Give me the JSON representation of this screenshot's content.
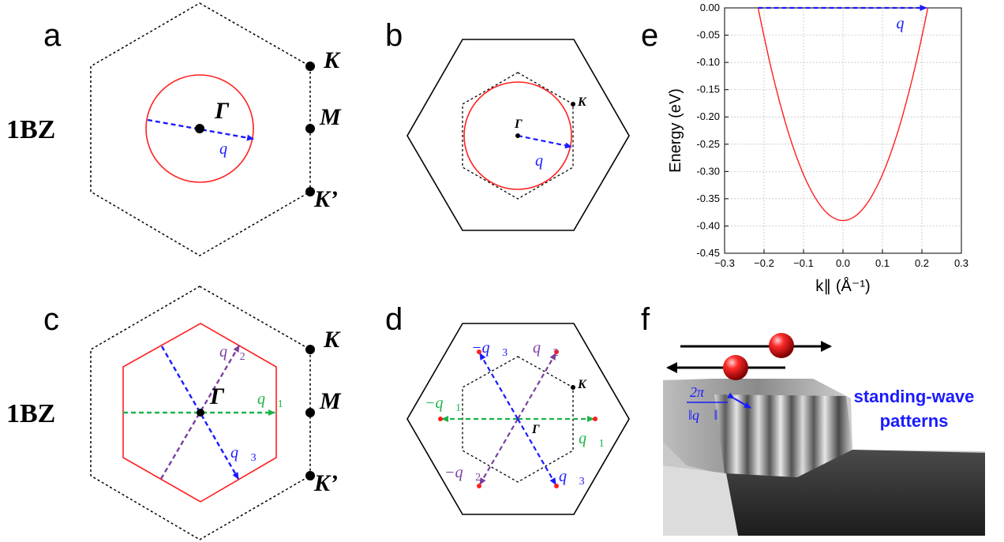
{
  "panel_labels": {
    "a": "a",
    "b": "b",
    "c": "c",
    "d": "d",
    "e": "e",
    "f": "f"
  },
  "bz_label": "1BZ",
  "points": {
    "gamma": "Γ",
    "k": "K",
    "m": "M",
    "kprime": "K’"
  },
  "vectors": {
    "q": "q⃗",
    "q1": "q⃗",
    "q1_sub": "1",
    "q2": "q⃗",
    "q2_sub": "2",
    "q3": "q⃗",
    "q3_sub": "3",
    "neg_q1": "−q⃗",
    "neg_q2": "−q⃗",
    "neg_q3": "−q⃗"
  },
  "colors": {
    "fermi_contour": "#ff2020",
    "q_blue": "#1a1aff",
    "q_green": "#1db34a",
    "q_purple": "#7b3fa0"
  },
  "panel_f": {
    "text_line1": "standing-wave",
    "text_line2": "patterns",
    "frac_num": "2π",
    "frac_den": "‖q⃗ ‖"
  },
  "chart_data": {
    "type": "line",
    "title": "",
    "xlabel": "k∥ (Å⁻¹)",
    "ylabel": "Energy (eV)",
    "xlim": [
      -0.3,
      0.3
    ],
    "ylim": [
      -0.45,
      0.0
    ],
    "xticks": [
      "−0.3",
      "−0.2",
      "−0.1",
      "0.0",
      "0.1",
      "0.2",
      "0.3"
    ],
    "yticks": [
      "0.00",
      "-0.05",
      "-0.10",
      "-0.15",
      "-0.20",
      "-0.25",
      "-0.30",
      "-0.35",
      "-0.40",
      "-0.45"
    ],
    "grid": true,
    "series": [
      {
        "curve": "parabola",
        "vertex_energy": -0.39,
        "kF": 0.215,
        "color": "#ff2020"
      }
    ],
    "arrow": {
      "from_k": -0.215,
      "to_k": 0.215,
      "energy": 0.0,
      "label": "q⃗",
      "color": "#1a1aff"
    }
  }
}
